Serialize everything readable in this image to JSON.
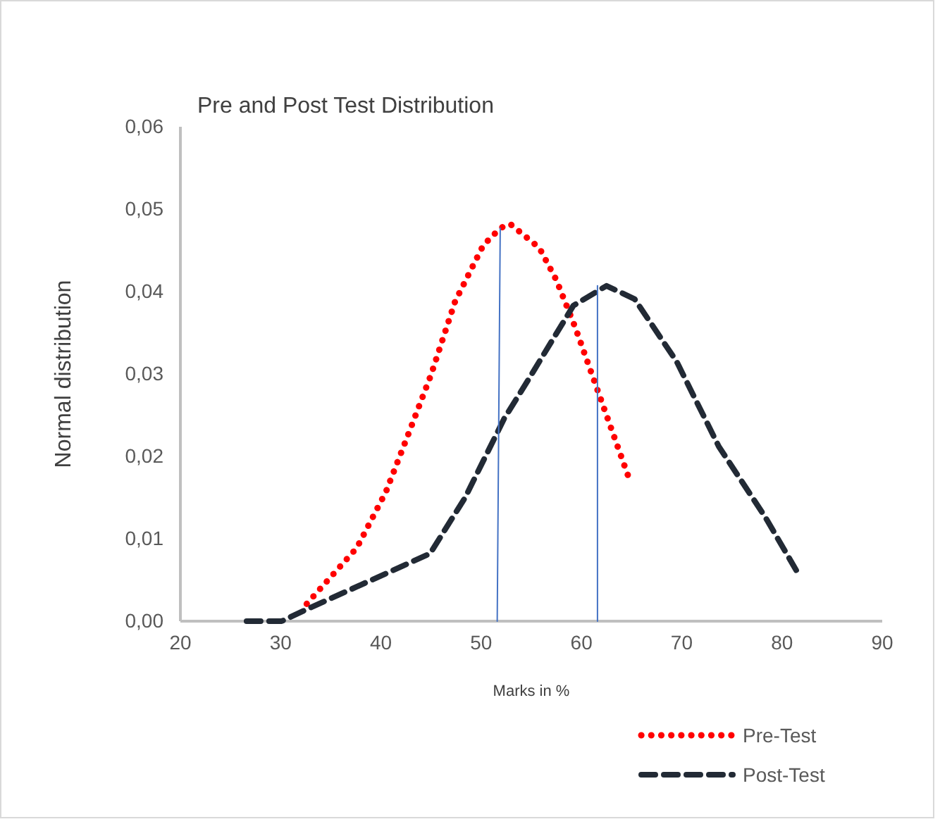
{
  "chart_data": {
    "type": "line",
    "title": "Pre and Post Test Distribution",
    "xlabel": "Marks in %",
    "ylabel": "Normal distribution",
    "xlim": [
      20,
      90
    ],
    "xticks": [
      20,
      30,
      40,
      50,
      60,
      70,
      80,
      90
    ],
    "ylim": [
      0,
      0.06
    ],
    "yticks": [
      {
        "value": 0,
        "label": "0,00"
      },
      {
        "value": 0.01,
        "label": "0,01"
      },
      {
        "value": 0.02,
        "label": "0,02"
      },
      {
        "value": 0.03,
        "label": "0,03"
      },
      {
        "value": 0.04,
        "label": "0,04"
      },
      {
        "value": 0.05,
        "label": "0,05"
      },
      {
        "value": 0.06,
        "label": "0,06"
      }
    ],
    "grid": false,
    "legend": "bottom right",
    "marker": "none",
    "series": [
      {
        "name": "Pre-Test",
        "color": "#ff0000",
        "line_style": "dotted",
        "x": [
          32.6,
          37.6,
          40.5,
          42.8,
          45.0,
          47.4,
          50.2,
          51.9,
          52.9,
          55.8,
          57.5,
          59.4,
          61.5,
          63.2,
          64.9
        ],
        "values": [
          0.0021,
          0.0089,
          0.0157,
          0.0229,
          0.0299,
          0.0388,
          0.0456,
          0.0477,
          0.0482,
          0.0453,
          0.0414,
          0.0356,
          0.0284,
          0.0226,
          0.0168
        ]
      },
      {
        "name": "Post-Test",
        "color": "#222a35",
        "line_style": "dashed",
        "x": [
          26.6,
          30.1,
          32.9,
          44.9,
          48.4,
          52.3,
          54.4,
          59.2,
          62.5,
          65.3,
          69.5,
          73.7,
          78.3,
          81.7
        ],
        "values": [
          0,
          0,
          0.0016,
          0.0082,
          0.015,
          0.0246,
          0.0287,
          0.0383,
          0.0407,
          0.0391,
          0.0315,
          0.0212,
          0.0127,
          0.0056
        ]
      },
      {
        "color": "#4472c4",
        "line_style": "solid",
        "x": [
          51.6,
          51.9
        ],
        "values": [
          0,
          0.0477
        ]
      },
      {
        "color": "#4472c4",
        "line_style": "solid",
        "x": [
          61.6,
          61.6
        ],
        "values": [
          0,
          0.0407
        ]
      }
    ]
  }
}
